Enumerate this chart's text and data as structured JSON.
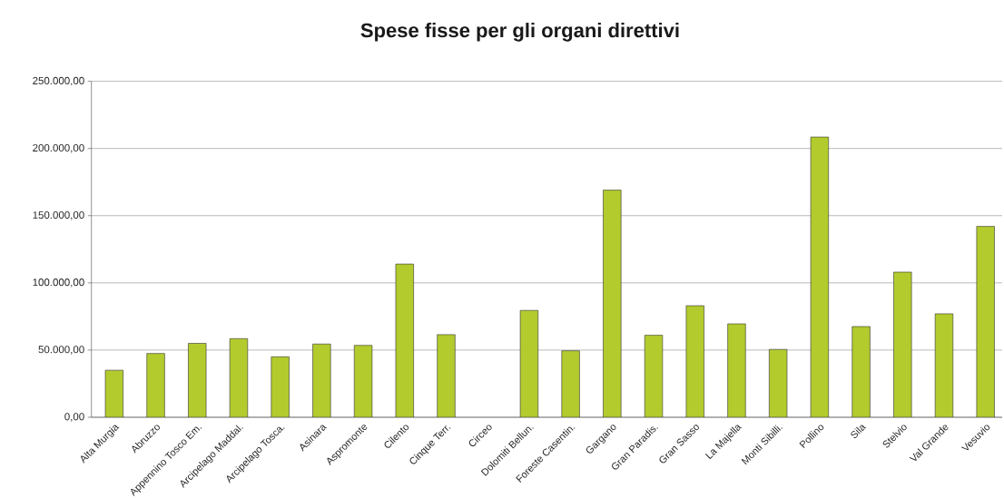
{
  "chart_data": {
    "type": "bar",
    "title": "Spese fisse per gli organi direttivi",
    "categories": [
      "Alta Murgia",
      "Abruzzo",
      "Appennino Tosco Em.",
      "Arcipelago Maddal.",
      "Arcipelago Tosca.",
      "Asinara",
      "Aspromonte",
      "Cilento",
      "Cinque Terr.",
      "Circeo",
      "Dolomiti Bellun.",
      "Foreste Casentin.",
      "Gargano",
      "Gran Paradis.",
      "Gran Sasso",
      "La Majella",
      "Monti Sibilli.",
      "Pollino",
      "Sila",
      "Stelvio",
      "Val Grande",
      "Vesuvio"
    ],
    "values": [
      35000,
      47500,
      55000,
      58500,
      45000,
      54500,
      53500,
      114000,
      61500,
      null,
      79500,
      49500,
      169000,
      61000,
      83000,
      69500,
      50500,
      208500,
      67500,
      108000,
      77000,
      142000
    ],
    "color": "#b3cb2d",
    "ylim": [
      0,
      250000
    ],
    "yticks": [
      {
        "value": 0,
        "label": "0,00"
      },
      {
        "value": 50000,
        "label": "50.000,00"
      },
      {
        "value": 100000,
        "label": "100.000,00"
      },
      {
        "value": 150000,
        "label": "150.000,00"
      },
      {
        "value": 200000,
        "label": "200.000,00"
      },
      {
        "value": 250000,
        "label": "250.000,00"
      }
    ],
    "grid": "y"
  }
}
